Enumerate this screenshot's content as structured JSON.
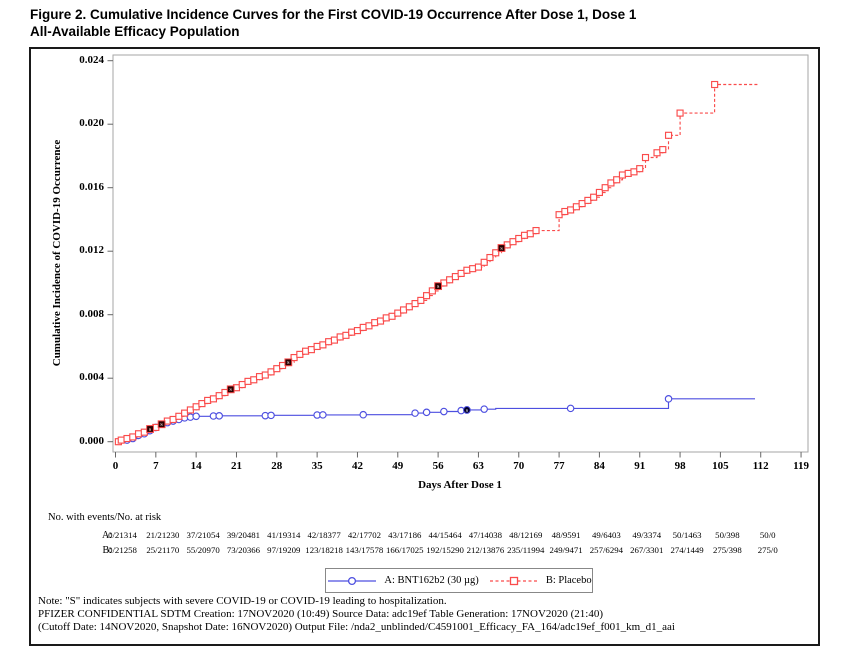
{
  "title": "Figure 2. Cumulative Incidence Curves for the First COVID-19 Occurrence After Dose 1, Dose 1\nAll-Available Efficacy Population",
  "chart_data": {
    "type": "line",
    "subtype": "kaplan-meier-step",
    "xlabel": "Days After Dose 1",
    "ylabel": "Cumulative Incidence of COVID-19 Occurrence",
    "xlim": [
      0,
      119
    ],
    "ylim": [
      0,
      0.024
    ],
    "x_ticks": [
      0,
      7,
      14,
      21,
      28,
      35,
      42,
      49,
      56,
      63,
      70,
      77,
      84,
      91,
      98,
      105,
      112,
      119
    ],
    "y_ticks": [
      "0.000",
      "0.004",
      "0.008",
      "0.012",
      "0.016",
      "0.020",
      "0.024"
    ],
    "grid": false,
    "legend_position": "bottom-center",
    "series": [
      {
        "name": "A: BNT162b2 (30 µg)",
        "color": "#4d4fe0",
        "severe_color": "#00002a",
        "marker": "circle",
        "line_style": "solid",
        "points": [
          [
            0,
            0
          ],
          [
            2,
            0.0001
          ],
          [
            3,
            0.0002
          ],
          [
            4,
            0.0004
          ],
          [
            5,
            0.0005
          ],
          [
            6,
            0.0007
          ],
          [
            7,
            0.0009
          ],
          [
            8,
            0.0011
          ],
          [
            9,
            0.0012
          ],
          [
            10,
            0.0013
          ],
          [
            11,
            0.0014
          ],
          [
            12,
            0.0015
          ],
          [
            13,
            0.00155
          ],
          [
            14,
            0.0016
          ],
          [
            17,
            0.00162
          ],
          [
            18,
            0.00163
          ],
          [
            26,
            0.00164
          ],
          [
            27,
            0.00166
          ],
          [
            35,
            0.00168
          ],
          [
            36,
            0.00169
          ],
          [
            43,
            0.0017
          ],
          [
            52,
            0.0018
          ],
          [
            54,
            0.00185
          ],
          [
            57,
            0.0019
          ],
          [
            60,
            0.00196
          ],
          [
            61,
            0.002
          ],
          [
            64,
            0.00205
          ],
          [
            66,
            0.0021
          ],
          [
            79,
            0.0021
          ],
          [
            95,
            0.0021
          ],
          [
            96,
            0.0027
          ],
          [
            111,
            0.0027
          ]
        ],
        "marker_days": [
          2,
          3,
          4,
          5,
          6,
          7,
          8,
          9,
          10,
          11,
          12,
          13,
          14,
          17,
          18,
          26,
          27,
          35,
          36,
          43,
          52,
          54,
          57,
          60,
          64,
          79,
          96
        ],
        "severe_points": [
          [
            61,
            0.002
          ]
        ]
      },
      {
        "name": "B: Placebo",
        "color": "#fa4b4b",
        "severe_color": "#2a0000",
        "marker": "square",
        "line_style": "dashed",
        "points": [
          [
            0.5,
            0
          ],
          [
            1,
            0.0001
          ],
          [
            2,
            0.0002
          ],
          [
            3,
            0.0003
          ],
          [
            4,
            0.0005
          ],
          [
            5,
            0.0006
          ],
          [
            6,
            0.0008
          ],
          [
            7,
            0.0009
          ],
          [
            8,
            0.0011
          ],
          [
            9,
            0.0013
          ],
          [
            10,
            0.0014
          ],
          [
            11,
            0.0016
          ],
          [
            12,
            0.0018
          ],
          [
            13,
            0.002
          ],
          [
            14,
            0.0022
          ],
          [
            15,
            0.0024
          ],
          [
            16,
            0.0026
          ],
          [
            17,
            0.0027
          ],
          [
            18,
            0.0029
          ],
          [
            19,
            0.0031
          ],
          [
            20,
            0.0033
          ],
          [
            21,
            0.0034
          ],
          [
            22,
            0.0036
          ],
          [
            23,
            0.0038
          ],
          [
            24,
            0.0039
          ],
          [
            25,
            0.0041
          ],
          [
            26,
            0.0042
          ],
          [
            27,
            0.0044
          ],
          [
            28,
            0.0046
          ],
          [
            29,
            0.0048
          ],
          [
            30,
            0.005
          ],
          [
            31,
            0.0053
          ],
          [
            32,
            0.0055
          ],
          [
            33,
            0.0057
          ],
          [
            34,
            0.0058
          ],
          [
            35,
            0.006
          ],
          [
            36,
            0.0061
          ],
          [
            37,
            0.0063
          ],
          [
            38,
            0.0064
          ],
          [
            39,
            0.0066
          ],
          [
            40,
            0.0067
          ],
          [
            41,
            0.0069
          ],
          [
            42,
            0.007
          ],
          [
            43,
            0.0072
          ],
          [
            44,
            0.0073
          ],
          [
            45,
            0.0075
          ],
          [
            46,
            0.0076
          ],
          [
            47,
            0.0078
          ],
          [
            48,
            0.0079
          ],
          [
            49,
            0.0081
          ],
          [
            50,
            0.0083
          ],
          [
            51,
            0.0085
          ],
          [
            52,
            0.0087
          ],
          [
            53,
            0.0089
          ],
          [
            54,
            0.0092
          ],
          [
            55,
            0.0095
          ],
          [
            56,
            0.0098
          ],
          [
            57,
            0.01
          ],
          [
            58,
            0.0102
          ],
          [
            59,
            0.0104
          ],
          [
            60,
            0.0106
          ],
          [
            61,
            0.0108
          ],
          [
            62,
            0.0109
          ],
          [
            63,
            0.011
          ],
          [
            64,
            0.0113
          ],
          [
            65,
            0.0116
          ],
          [
            66,
            0.0119
          ],
          [
            67,
            0.0122
          ],
          [
            68,
            0.0124
          ],
          [
            69,
            0.0126
          ],
          [
            70,
            0.0128
          ],
          [
            71,
            0.013
          ],
          [
            72,
            0.0131
          ],
          [
            73,
            0.0133
          ],
          [
            77,
            0.0143
          ],
          [
            78,
            0.0145
          ],
          [
            79,
            0.0146
          ],
          [
            80,
            0.0148
          ],
          [
            81,
            0.015
          ],
          [
            82,
            0.0152
          ],
          [
            83,
            0.0154
          ],
          [
            84,
            0.0157
          ],
          [
            85,
            0.016
          ],
          [
            86,
            0.0163
          ],
          [
            87,
            0.0165
          ],
          [
            88,
            0.0168
          ],
          [
            89,
            0.0169
          ],
          [
            90,
            0.017
          ],
          [
            91,
            0.0172
          ],
          [
            92,
            0.0179
          ],
          [
            94,
            0.0182
          ],
          [
            95,
            0.0184
          ],
          [
            96,
            0.0193
          ],
          [
            98,
            0.0207
          ],
          [
            104,
            0.0225
          ],
          [
            111.5,
            0.0225
          ]
        ],
        "severe_points": [
          [
            6,
            0.0008
          ],
          [
            8,
            0.0011
          ],
          [
            20,
            0.0033
          ],
          [
            30,
            0.005
          ],
          [
            56,
            0.0098
          ],
          [
            67,
            0.0122
          ]
        ]
      }
    ]
  },
  "risk_table": {
    "header": "No. with events/No. at risk",
    "days": [
      0,
      7,
      14,
      21,
      28,
      35,
      42,
      49,
      56,
      63,
      70,
      77,
      84,
      91,
      98,
      105,
      112
    ],
    "rows": [
      {
        "label": "A:",
        "values": [
          "0/21314",
          "21/21230",
          "37/21054",
          "39/20481",
          "41/19314",
          "42/18377",
          "42/17702",
          "43/17186",
          "44/15464",
          "47/14038",
          "48/12169",
          "48/9591",
          "49/6403",
          "49/3374",
          "50/1463",
          "50/398",
          "50/0"
        ]
      },
      {
        "label": "B:",
        "values": [
          "0/21258",
          "25/21170",
          "55/20970",
          "73/20366",
          "97/19209",
          "123/18218",
          "143/17578",
          "166/17025",
          "192/15290",
          "212/13876",
          "235/11994",
          "249/9471",
          "257/6294",
          "267/3301",
          "274/1449",
          "275/398",
          "275/0"
        ]
      }
    ]
  },
  "legend": {
    "items": [
      {
        "label": "A: BNT162b2 (30 µg)"
      },
      {
        "label": "B: Placebo"
      }
    ]
  },
  "notes": [
    "Note: \"S\" indicates subjects with severe COVID-19 or COVID-19 leading to hospitalization.",
    "PFIZER CONFIDENTIAL  SDTM Creation: 17NOV2020 (10:49)  Source Data: adc19ef  Table Generation: 17NOV2020 (21:40)",
    "(Cutoff Date: 14NOV2020, Snapshot Date: 16NOV2020) Output File: /nda2_unblinded/C4591001_Efficacy_FA_164/adc19ef_f001_km_d1_aai"
  ]
}
